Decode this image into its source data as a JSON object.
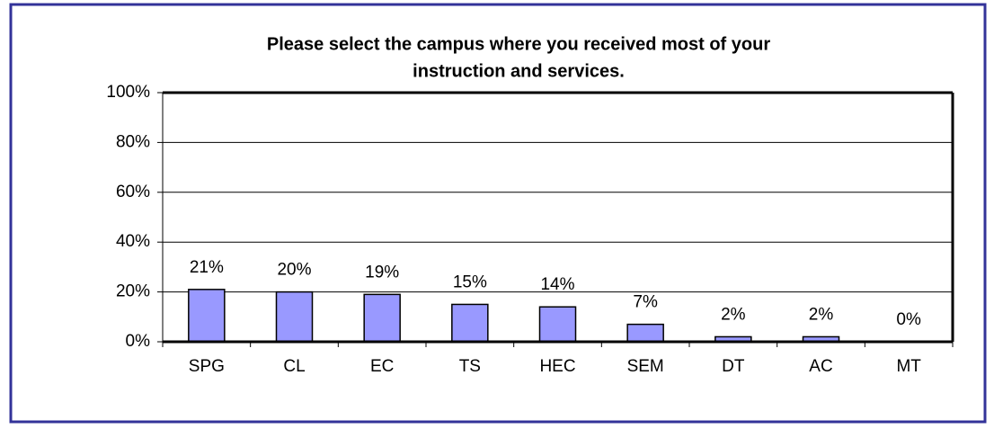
{
  "chart_data": {
    "type": "bar",
    "title": [
      "Please select the campus where you received most of your",
      "instruction and services."
    ],
    "categories": [
      "SPG",
      "CL",
      "EC",
      "TS",
      "HEC",
      "SEM",
      "DT",
      "AC",
      "MT"
    ],
    "values": [
      21,
      20,
      19,
      15,
      14,
      7,
      2,
      2,
      0
    ],
    "value_labels": [
      "21%",
      "20%",
      "19%",
      "15%",
      "14%",
      "7%",
      "2%",
      "2%",
      "0%"
    ],
    "color": "#9999ff",
    "ylim": [
      0,
      100
    ],
    "yticks": [
      {
        "value": 0,
        "label": "0%"
      },
      {
        "value": 20,
        "label": "20%"
      },
      {
        "value": 40,
        "label": "40%"
      },
      {
        "value": 60,
        "label": "60%"
      },
      {
        "value": 80,
        "label": "80%"
      },
      {
        "value": 100,
        "label": "100%"
      }
    ],
    "grid": true
  }
}
